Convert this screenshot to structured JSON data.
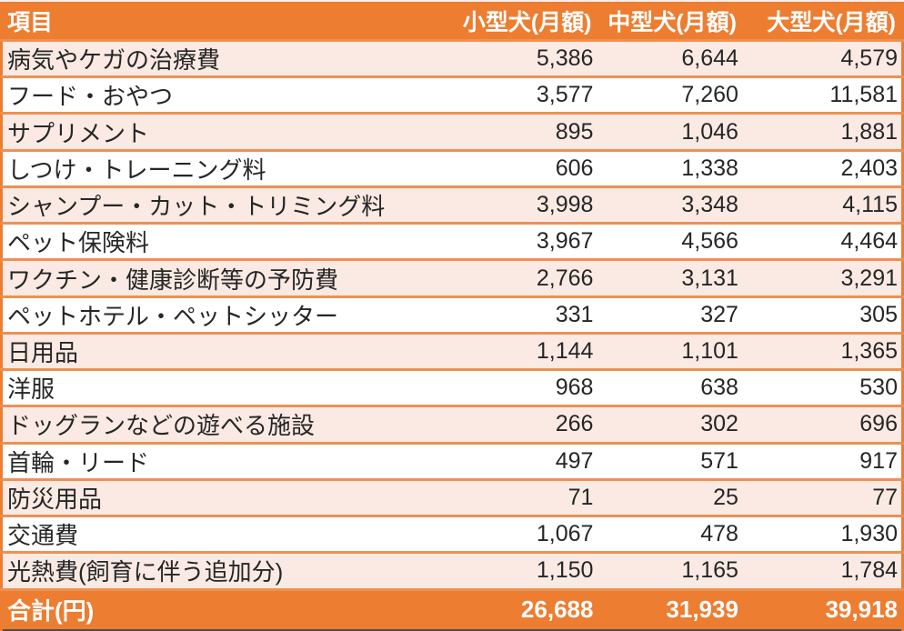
{
  "colors": {
    "accent": "#ED7D31",
    "separator": "#EF9052",
    "band": "#FAEAE3",
    "white_row": "#FFFFFF",
    "header_text": "#FFFFFF",
    "body_text": "#262626",
    "top_edge": "#FBEEE8",
    "bottom_edge": "#4D4D4D"
  },
  "chart_data": {
    "type": "table",
    "title": "",
    "columns": [
      "項目",
      "小型犬(月額)",
      "中型犬(月額)",
      "大型犬(月額)"
    ],
    "unit": "円",
    "rows": [
      {
        "label": "病気やケガの治療費",
        "values": [
          5386,
          6644,
          4579
        ]
      },
      {
        "label": "フード・おやつ",
        "values": [
          3577,
          7260,
          11581
        ]
      },
      {
        "label": "サプリメント",
        "values": [
          895,
          1046,
          1881
        ]
      },
      {
        "label": "しつけ・トレーニング料",
        "values": [
          606,
          1338,
          2403
        ]
      },
      {
        "label": "シャンプー・カット・トリミング料",
        "values": [
          3998,
          3348,
          4115
        ]
      },
      {
        "label": "ペット保険料",
        "values": [
          3967,
          4566,
          4464
        ]
      },
      {
        "label": "ワクチン・健康診断等の予防費",
        "values": [
          2766,
          3131,
          3291
        ]
      },
      {
        "label": "ペットホテル・ペットシッター",
        "values": [
          331,
          327,
          305
        ]
      },
      {
        "label": "日用品",
        "values": [
          1144,
          1101,
          1365
        ]
      },
      {
        "label": "洋服",
        "values": [
          968,
          638,
          530
        ]
      },
      {
        "label": "ドッグランなどの遊べる施設",
        "values": [
          266,
          302,
          696
        ]
      },
      {
        "label": "首輪・リード",
        "values": [
          497,
          571,
          917
        ]
      },
      {
        "label": "防災用品",
        "values": [
          71,
          25,
          77
        ]
      },
      {
        "label": "交通費",
        "values": [
          1067,
          478,
          1930
        ]
      },
      {
        "label": "光熱費(飼育に伴う追加分)",
        "values": [
          1150,
          1165,
          1784
        ]
      }
    ],
    "total": {
      "label": "合計(円)",
      "values": [
        26688,
        31939,
        39918
      ]
    },
    "layout": {
      "banded_rows": true,
      "first_data_row_banded": true,
      "header_fill": "#ED7D31",
      "total_fill": "#ED7D31"
    }
  }
}
